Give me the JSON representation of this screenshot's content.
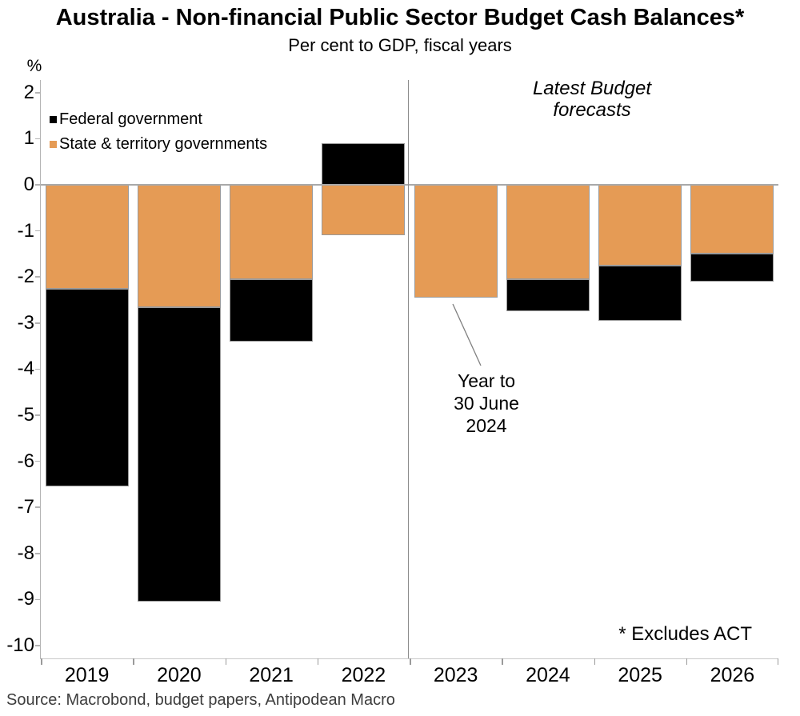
{
  "title": "Australia - Non-financial Public Sector Budget Cash Balances*",
  "subtitle": "Per cent to GDP, fiscal years",
  "axis_unit_label": "%",
  "annotations": {
    "forecast_label": "Latest Budget\nforecasts",
    "year_note": "Year to\n30 June\n2024",
    "footnote": "* Excludes ACT"
  },
  "source": "Source: Macrobond, budget papers, Antipodean Macro",
  "colors": {
    "federal": "#000000",
    "state": "#E59B55",
    "axis_line": "#b4b4b4",
    "zero_line": "#a9a9a9",
    "divider_line": "#8c8c8c"
  },
  "chart_data": {
    "type": "bar",
    "stacked": true,
    "categories": [
      "2019",
      "2020",
      "2021",
      "2022",
      "2023",
      "2024",
      "2025",
      "2026"
    ],
    "series": [
      {
        "name": "Federal government",
        "color": "#000000",
        "values": [
          -4.3,
          -6.4,
          -1.35,
          0.9,
          0.0,
          -0.7,
          -1.2,
          -0.6
        ]
      },
      {
        "name": "State & territory governments",
        "color": "#E59B55",
        "values": [
          -2.25,
          -2.65,
          -2.05,
          -1.1,
          -2.45,
          -2.05,
          -1.75,
          -1.5
        ]
      }
    ],
    "stack_order_from_zero": [
      "State & territory governments",
      "Federal government"
    ],
    "totals": [
      -6.55,
      -9.05,
      -3.4,
      -0.2,
      -2.45,
      -2.75,
      -2.95,
      -2.1
    ],
    "ylim": [
      -10,
      2
    ],
    "yticks": [
      2,
      1,
      0,
      -1,
      -2,
      -3,
      -4,
      -5,
      -6,
      -7,
      -8,
      -9,
      -10
    ],
    "xlabel": "",
    "ylabel": "%",
    "grid": false,
    "legend_position": "top-left",
    "forecast_divider_after_category": "2022"
  }
}
